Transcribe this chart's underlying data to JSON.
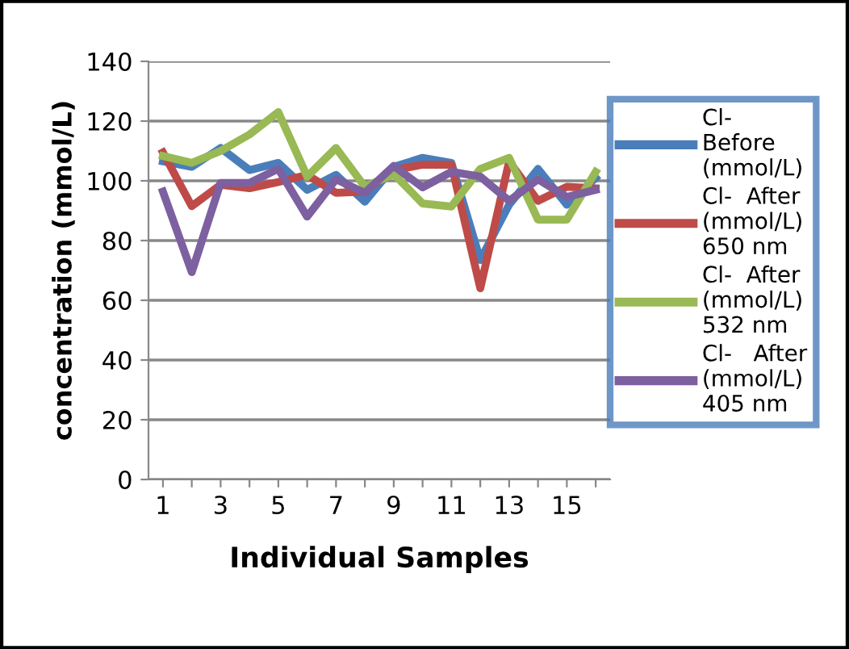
{
  "chart_data": {
    "type": "line",
    "xlabel": "Individual Samples",
    "ylabel": "concentration (mmol/L)",
    "categories": [
      "1",
      null,
      "3",
      null,
      "5",
      null,
      "7",
      null,
      "9",
      null,
      "11",
      null,
      "13",
      null,
      "15",
      null
    ],
    "series": [
      {
        "name": "Cl-\nBefore\n(mmol/L)",
        "color": "#4a7ebb",
        "values": [
          106.5,
          104.7,
          111,
          103.6,
          106,
          97,
          102,
          93,
          104.7,
          107.7,
          106,
          73.5,
          92,
          104,
          92,
          101
        ]
      },
      {
        "name": "Cl-  After\n(mmol/L)\n650 nm",
        "color": "#be4b48",
        "values": [
          109.5,
          91.5,
          98.7,
          97.5,
          99.6,
          102,
          96,
          96.4,
          103.6,
          105.4,
          105.4,
          64,
          106.5,
          93.3,
          98,
          97.5
        ]
      },
      {
        "name": "Cl-  After\n(mmol/L)\n532 nm",
        "color": "#98b954",
        "values": [
          108.3,
          106,
          110,
          115.5,
          123,
          101.4,
          111,
          98,
          102.3,
          92.4,
          91.4,
          104,
          107.7,
          87,
          87,
          103
        ]
      },
      {
        "name": "Cl-   After\n(mmol/L)\n405 nm",
        "color": "#7d60a0",
        "values": [
          96.4,
          69.4,
          99.3,
          99.3,
          104,
          88,
          100.5,
          96,
          105,
          97.8,
          103,
          101.4,
          93.3,
          100.5,
          94.6,
          97
        ]
      }
    ],
    "ylim": [
      0,
      140
    ],
    "yticks": [
      0,
      20,
      40,
      60,
      80,
      100,
      120,
      140
    ],
    "grid": "y",
    "legend": "right",
    "marker": "none",
    "line_style": "solid"
  }
}
